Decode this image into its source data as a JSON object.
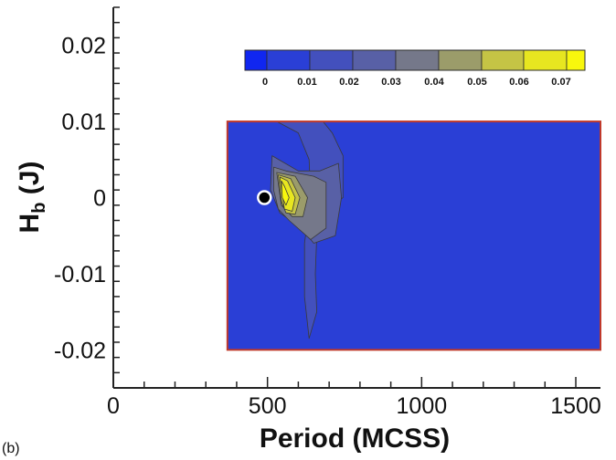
{
  "panel_label": "(b)",
  "colors": {
    "background_level": "#2a3fd6",
    "plot_border": "#c0392b",
    "axis": "#222222",
    "marker_fill": "#000000",
    "marker_ring": "#ffffff"
  },
  "chart_data": {
    "type": "heatmap",
    "title": "",
    "xlabel": "Period (MCSS)",
    "ylabel_main": "H",
    "ylabel_sub": "b",
    "ylabel_tail": " (J)",
    "xlim": [
      0,
      1580
    ],
    "ylim": [
      -0.025,
      0.025
    ],
    "x_ticks": [
      0,
      500,
      1000,
      1500
    ],
    "x_tick_labels": [
      "0",
      "500",
      "1000",
      "1500"
    ],
    "y_ticks": [
      0.02,
      0.01,
      0,
      -0.01,
      -0.02
    ],
    "y_tick_labels": [
      "0.02",
      "0.01",
      "0",
      "-0.01",
      "-0.02"
    ],
    "x_minor_step": 100,
    "y_minor_step": 0.002,
    "data_extent": {
      "x": [
        370,
        1580
      ],
      "y": [
        -0.02,
        0.01
      ]
    },
    "colorbar": {
      "levels": [
        0,
        0.01,
        0.02,
        0.03,
        0.04,
        0.05,
        0.06,
        0.07
      ],
      "level_labels": [
        "0",
        "0.01",
        "0.02",
        "0.03",
        "0.04",
        "0.05",
        "0.06",
        "0.07"
      ],
      "colors": [
        "#1026f0",
        "#2a3fd6",
        "#4350bd",
        "#5860a6",
        "#75788a",
        "#9b9c6a",
        "#c5c445",
        "#e7e620",
        "#f8f70d"
      ]
    },
    "contours": [
      {
        "level": 0.01,
        "points": [
          [
            530,
            0.01
          ],
          [
            600,
            0.0085
          ],
          [
            635,
            0.005
          ],
          [
            640,
            0
          ],
          [
            620,
            -0.006
          ],
          [
            620,
            -0.013
          ],
          [
            635,
            -0.0185
          ],
          [
            660,
            -0.015
          ],
          [
            655,
            -0.01
          ],
          [
            660,
            -0.005
          ],
          [
            690,
            -0.0015
          ],
          [
            745,
            0
          ],
          [
            745,
            0.0055
          ],
          [
            710,
            0.0085
          ],
          [
            680,
            0.01
          ]
        ]
      },
      {
        "level": 0.02,
        "points": [
          [
            515,
            0.0055
          ],
          [
            600,
            0.0035
          ],
          [
            670,
            0.0035
          ],
          [
            730,
            0.0045
          ],
          [
            740,
            0
          ],
          [
            720,
            -0.005
          ],
          [
            650,
            -0.006
          ],
          [
            610,
            -0.004
          ],
          [
            540,
            -0.002
          ],
          [
            510,
            0.001
          ]
        ]
      },
      {
        "level": 0.03,
        "points": [
          [
            520,
            0.004
          ],
          [
            560,
            0.0035
          ],
          [
            650,
            0.0028
          ],
          [
            690,
            0.002
          ],
          [
            690,
            -0.004
          ],
          [
            640,
            -0.0055
          ],
          [
            570,
            -0.003
          ],
          [
            535,
            -0.0015
          ],
          [
            520,
            0.001
          ]
        ]
      },
      {
        "level": 0.04,
        "points": [
          [
            530,
            0.0033
          ],
          [
            590,
            0.0028
          ],
          [
            630,
            0
          ],
          [
            615,
            -0.0025
          ],
          [
            580,
            -0.0025
          ],
          [
            545,
            -0.001
          ]
        ]
      },
      {
        "level": 0.05,
        "points": [
          [
            535,
            0.003
          ],
          [
            575,
            0.0025
          ],
          [
            605,
            0
          ],
          [
            590,
            -0.0022
          ],
          [
            560,
            -0.002
          ],
          [
            545,
            -0.0005
          ]
        ]
      },
      {
        "level": 0.06,
        "points": [
          [
            540,
            0.0027
          ],
          [
            565,
            0.0022
          ],
          [
            590,
            0
          ],
          [
            580,
            -0.0018
          ],
          [
            555,
            -0.0015
          ]
        ]
      },
      {
        "level": 0.07,
        "points": [
          [
            545,
            0.0022
          ],
          [
            555,
            0.0015
          ],
          [
            570,
            0
          ],
          [
            560,
            -0.001
          ],
          [
            548,
            0
          ]
        ]
      }
    ],
    "marker": {
      "x": 490,
      "y": 0
    }
  }
}
